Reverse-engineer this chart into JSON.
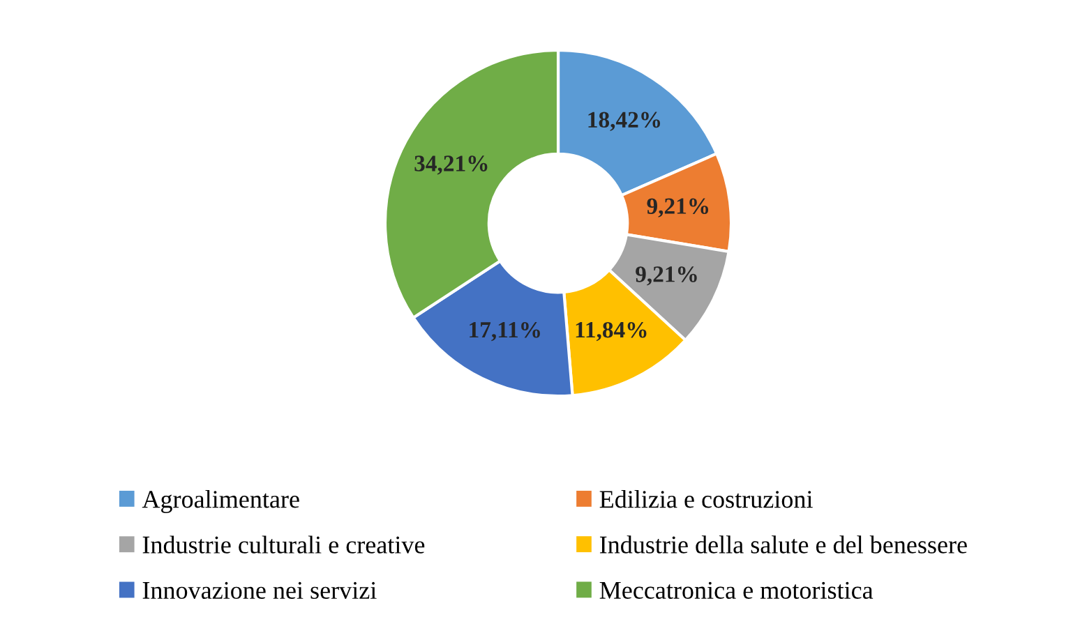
{
  "chart_data": {
    "type": "donut",
    "categories": [
      "Agroalimentare",
      "Edilizia e costruzioni",
      "Industrie culturali e creative",
      "Industrie della salute e del benessere",
      "Innovazione nei servizi",
      "Meccatronica e motoristica"
    ],
    "values": [
      18.42,
      9.21,
      9.21,
      11.84,
      17.11,
      34.21
    ],
    "colors": [
      "#5b9bd5",
      "#ed7d31",
      "#a5a5a5",
      "#ffc000",
      "#4472c4",
      "#70ad47"
    ],
    "value_labels": [
      "18,42%",
      "9,21%",
      "9,21%",
      "11,84%",
      "17,11%",
      "34,21%"
    ],
    "legend": "bottom"
  }
}
